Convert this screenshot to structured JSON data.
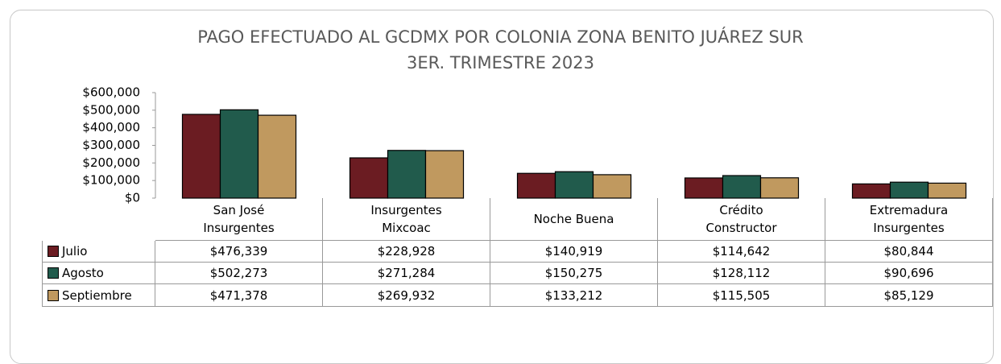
{
  "chart_data": {
    "type": "bar",
    "title": "PAGO EFECTUADO AL GCDMX POR COLONIA ZONA BENITO JUÁREZ SUR\n3ER. TRIMESTRE 2023",
    "categories": [
      "San José\nInsurgentes",
      "Insurgentes\nMixcoac",
      "Noche Buena",
      "Crédito\nConstructor",
      "Extremadura\nInsurgentes"
    ],
    "series": [
      {
        "name": "Julio",
        "color": "#6b1c22",
        "values": [
          476339,
          228928,
          140919,
          114642,
          80844
        ],
        "value_labels": [
          "$476,339",
          "$228,928",
          "$140,919",
          "$114,642",
          "$80,844"
        ]
      },
      {
        "name": "Agosto",
        "color": "#215b4c",
        "values": [
          502273,
          271284,
          150275,
          128112,
          90696
        ],
        "value_labels": [
          "$502,273",
          "$271,284",
          "$150,275",
          "$128,112",
          "$90,696"
        ]
      },
      {
        "name": "Septiembre",
        "color": "#c0995f",
        "values": [
          471378,
          269932,
          133212,
          115505,
          85129
        ],
        "value_labels": [
          "$471,378",
          "$269,932",
          "$133,212",
          "$115,505",
          "$85,129"
        ]
      }
    ],
    "ylim": [
      0,
      600000
    ],
    "yticks": [
      {
        "value": 0,
        "label": "$0"
      },
      {
        "value": 100000,
        "label": "$100,000"
      },
      {
        "value": 200000,
        "label": "$200,000"
      },
      {
        "value": 300000,
        "label": "$300,000"
      },
      {
        "value": 400000,
        "label": "$400,000"
      },
      {
        "value": 500000,
        "label": "$500,000"
      },
      {
        "value": 600000,
        "label": "$600,000"
      }
    ],
    "grid": false
  }
}
